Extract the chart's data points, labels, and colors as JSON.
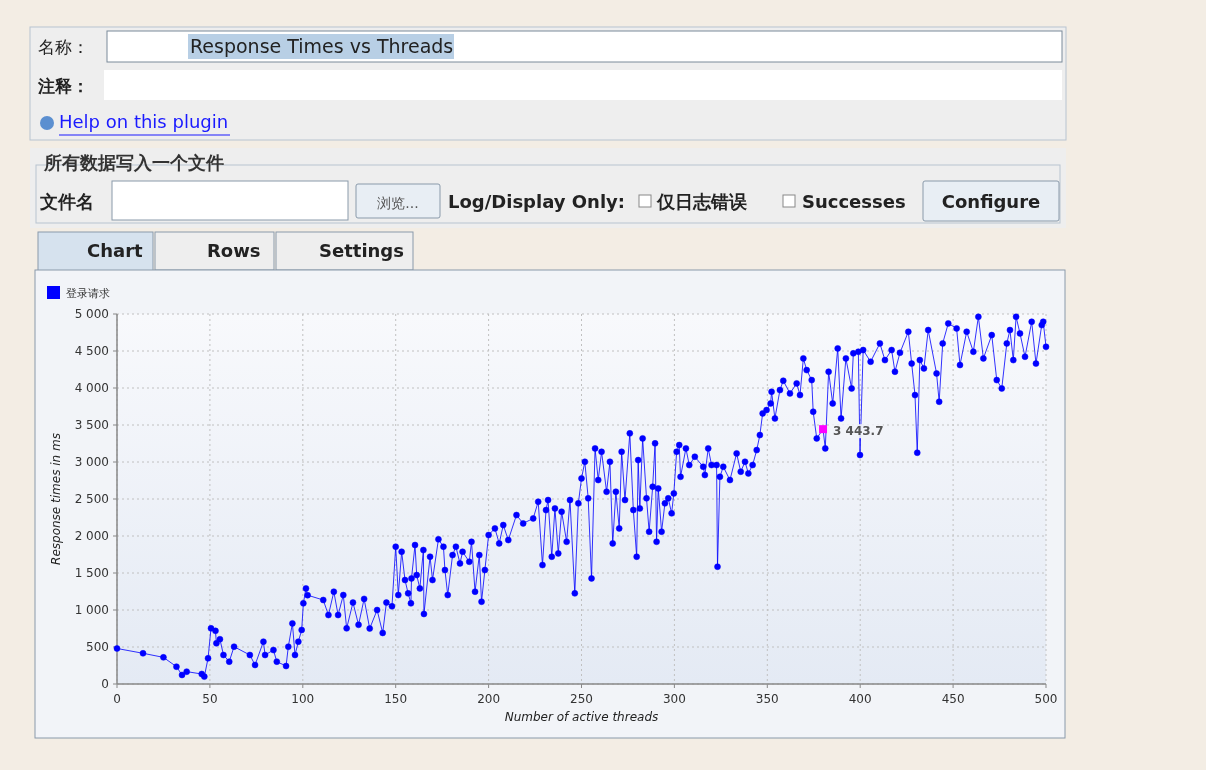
{
  "chart_data": {
    "type": "line",
    "title": "Response Times vs Threads",
    "xlabel": "Number of active threads",
    "ylabel": "Response times in ms",
    "xlim": [
      0,
      500
    ],
    "xticks": [
      0,
      50,
      100,
      150,
      200,
      250,
      300,
      350,
      400,
      450,
      500
    ],
    "ylim": [
      0,
      5000
    ],
    "yticks": [
      0,
      500,
      {
        "value": 1000,
        "label": "1 000"
      },
      {
        "value": 1500,
        "label": "1 500"
      },
      {
        "value": 2000,
        "label": "2 000"
      },
      {
        "value": 2500,
        "label": "2 500"
      },
      {
        "value": 3000,
        "label": "3 000"
      },
      {
        "value": 3500,
        "label": "3 500"
      },
      {
        "value": 4000,
        "label": "4 000"
      },
      {
        "value": 4500,
        "label": "4 500"
      },
      {
        "value": 5000,
        "label": "5 000"
      }
    ],
    "grid": true,
    "legend": "top left",
    "marker": "circle",
    "line_style": "solid",
    "annotations": [
      "名称：",
      "注释：",
      "Help on this plugin",
      "所有数据写入一个文件",
      "文件名",
      "浏览...",
      "Log/Display Only:",
      "仅日志错误",
      "Successes",
      "Configure",
      "Chart",
      "Rows",
      "Settings",
      {
        "text": "3 443.7",
        "x": 380,
        "y": 3443.7
      }
    ],
    "series": [
      {
        "name": "登录请求",
        "color": "#0000ff",
        "x": [
          0,
          14,
          25,
          32,
          35,
          37.5,
          45.6,
          47,
          49,
          50.6,
          53,
          53.5,
          55.4,
          57.3,
          60.4,
          63,
          71.5,
          74.3,
          78.8,
          79.7,
          84.2,
          86,
          91,
          92.2,
          94.4,
          95.8,
          97.6,
          99.4,
          100.3,
          101.7,
          102.6,
          111,
          113.8,
          116.7,
          119,
          121.8,
          123.6,
          127,
          130,
          133,
          136,
          140,
          143,
          145,
          148,
          150,
          151.4,
          153.2,
          155,
          156.7,
          158.2,
          158.5,
          160.4,
          161.3,
          163,
          164.9,
          165.2,
          168.5,
          169.8,
          173,
          175.7,
          176.5,
          178,
          180.6,
          182.4,
          184.6,
          186,
          189.6,
          190.8,
          192.7,
          195,
          196.2,
          198,
          200,
          203.4,
          205.7,
          207.9,
          210.6,
          215,
          218.6,
          224,
          226.7,
          229,
          230.9,
          232,
          234,
          235.7,
          237.5,
          239.3,
          242,
          243.8,
          246.4,
          248.3,
          250,
          251.8,
          253.6,
          255.4,
          257.3,
          259,
          260.8,
          263.5,
          265.3,
          266.8,
          268.5,
          270.3,
          271.6,
          273.4,
          276,
          277.9,
          279.7,
          280.5,
          281.4,
          282.9,
          285,
          286.4,
          288.3,
          289.6,
          290.4,
          291.3,
          293.1,
          294.9,
          296.7,
          298.5,
          299.7,
          301.2,
          302.6,
          303.3,
          306.2,
          308,
          311,
          315.5,
          316.4,
          318.2,
          320,
          322.7,
          323.2,
          324.5,
          326.3,
          329.9,
          333.5,
          335.7,
          338,
          339.8,
          342.1,
          344.3,
          346,
          347.5,
          349.6,
          351.8,
          352.3,
          354.1,
          356.8,
          358.6,
          362.2,
          365.8,
          367.6,
          369.4,
          371.2,
          373.9,
          374.7,
          376.6,
          380,
          381.2,
          383,
          385.2,
          387.9,
          389.7,
          392.3,
          395.4,
          396.3,
          399,
          399.9,
          401.6,
          405.6,
          410.6,
          413.3,
          416.9,
          418.7,
          421.4,
          425.9,
          427.7,
          429.5,
          430.7,
          432.1,
          434.3,
          436.6,
          441.1,
          442.5,
          444.4,
          447.4,
          451.9,
          453.7,
          457.3,
          460.9,
          463.6,
          466.3,
          470.8,
          473.5,
          476.2,
          478.9,
          480.6,
          482.4,
          483.9,
          486,
          488.7,
          492.3,
          494.6,
          497.7,
          498.5,
          500
        ],
        "values": [
          480,
          415,
          360,
          234,
          122,
          167,
          135,
          100,
          347,
          752,
          718,
          550,
          605,
          392,
          302,
          504,
          392,
          257,
          572,
          392,
          459,
          302,
          243,
          504,
          819,
          392,
          572,
          730,
          1090,
          1292,
          1200,
          1135,
          932,
          1247,
          932,
          1202,
          752,
          1100,
          800,
          1150,
          750,
          1000,
          690,
          1100,
          1050,
          1855,
          1202,
          1787,
          1405,
          1225,
          1090,
          1427,
          1878,
          1472,
          1292,
          1810,
          946,
          1720,
          1405,
          1955,
          1855,
          1540,
          1202,
          1742,
          1855,
          1630,
          1787,
          1652,
          1922,
          1247,
          1742,
          1112,
          1540,
          2013,
          2103,
          1900,
          2148,
          1945,
          2283,
          2170,
          2238,
          2463,
          1607,
          2350,
          2486,
          1720,
          2373,
          1765,
          2328,
          1922,
          2486,
          1225,
          2441,
          2778,
          3003,
          2509,
          1427,
          3184,
          2756,
          3138,
          2598,
          3003,
          1900,
          2598,
          2103,
          3138,
          2486,
          3387,
          2351,
          1720,
          3026,
          2373,
          3319,
          2509,
          2058,
          2666,
          3252,
          1922,
          2643,
          2058,
          2441,
          2509,
          2306,
          2576,
          3138,
          3229,
          2800,
          3184,
          2959,
          3071,
          2936,
          2824,
          3184,
          2959,
          2959,
          1585,
          2800,
          2936,
          2756,
          3116,
          2869,
          3003,
          2846,
          2959,
          3161,
          3364,
          3657,
          3702,
          3792,
          3949,
          3589,
          3972,
          4098,
          3927,
          4062,
          3904,
          4400,
          4242,
          4107,
          3679,
          3319,
          3443.7,
          3184,
          4220,
          3791,
          4535,
          3589,
          4400,
          3994,
          4468,
          4490,
          3094,
          4513,
          4355,
          4603,
          4377,
          4513,
          4220,
          4476,
          4760,
          4330,
          3904,
          3125,
          4377,
          4265,
          4783,
          4197,
          3814,
          4603,
          4873,
          4805,
          4310,
          4760,
          4490,
          4962,
          4400,
          4715,
          4107,
          3994,
          4603,
          4783,
          4377,
          4962,
          4738,
          4422,
          4895,
          4330,
          4850,
          4895,
          4557
        ]
      }
    ]
  }
}
